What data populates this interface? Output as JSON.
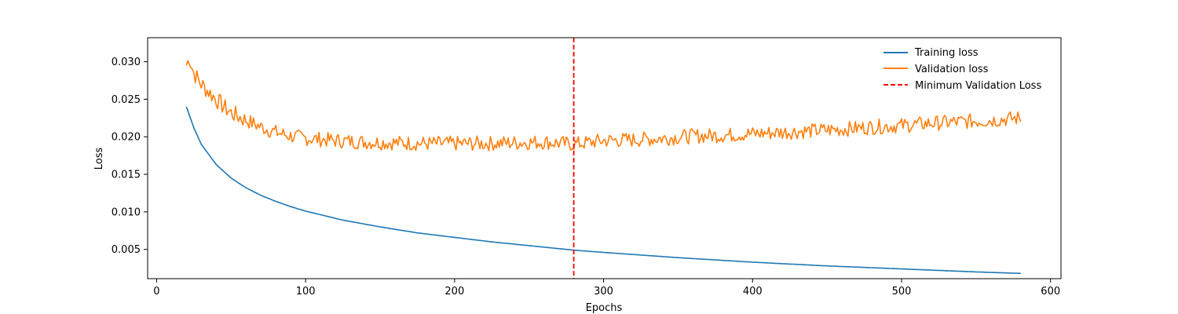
{
  "chart_data": {
    "type": "line",
    "title": "",
    "xlabel": "Epochs",
    "ylabel": "Loss",
    "xlim": [
      -6,
      607
    ],
    "ylim": [
      0.0011,
      0.0332
    ],
    "x_ticks": [
      0,
      100,
      200,
      300,
      400,
      500,
      600
    ],
    "x_tick_labels": [
      "0",
      "100",
      "200",
      "300",
      "400",
      "500",
      "600"
    ],
    "y_ticks": [
      0.005,
      0.01,
      0.015,
      0.02,
      0.025,
      0.03
    ],
    "y_tick_labels": [
      "0.005",
      "0.010",
      "0.015",
      "0.020",
      "0.025",
      "0.030"
    ],
    "grid": false,
    "legend_position": "top-right",
    "series": [
      {
        "name": "Training loss",
        "color": "#1f77b4",
        "x": [
          20,
          25,
          30,
          40,
          50,
          60,
          70,
          80,
          90,
          100,
          125,
          150,
          175,
          200,
          225,
          250,
          280,
          300,
          350,
          400,
          450,
          500,
          550,
          580
        ],
        "y": [
          0.024,
          0.0212,
          0.019,
          0.0163,
          0.0145,
          0.0132,
          0.0122,
          0.0114,
          0.0107,
          0.0101,
          0.0089,
          0.008,
          0.0072,
          0.0066,
          0.006,
          0.0055,
          0.0049,
          0.0046,
          0.0039,
          0.0033,
          0.0028,
          0.0024,
          0.002,
          0.0018
        ]
      },
      {
        "name": "Validation loss",
        "color": "#ff7f0e",
        "x": [
          20,
          22,
          25,
          30,
          35,
          40,
          45,
          50,
          60,
          70,
          80,
          90,
          100,
          120,
          140,
          160,
          180,
          200,
          220,
          240,
          260,
          280,
          300,
          320,
          340,
          360,
          380,
          400,
          420,
          440,
          460,
          480,
          500,
          520,
          540,
          560,
          580
        ],
        "y": [
          0.0295,
          0.0305,
          0.0285,
          0.027,
          0.026,
          0.025,
          0.024,
          0.0232,
          0.0222,
          0.0213,
          0.0206,
          0.0201,
          0.0198,
          0.0195,
          0.0193,
          0.0192,
          0.0191,
          0.0191,
          0.0191,
          0.0192,
          0.0193,
          0.019,
          0.0195,
          0.0196,
          0.0198,
          0.0201,
          0.0202,
          0.0204,
          0.0206,
          0.0208,
          0.021,
          0.0213,
          0.0215,
          0.0218,
          0.022,
          0.0222,
          0.0225
        ]
      }
    ],
    "annotations": [
      {
        "type": "vline",
        "x": 280,
        "color": "#ff0000",
        "style": "dashed",
        "name": "Minimum Validation Loss"
      }
    ]
  }
}
